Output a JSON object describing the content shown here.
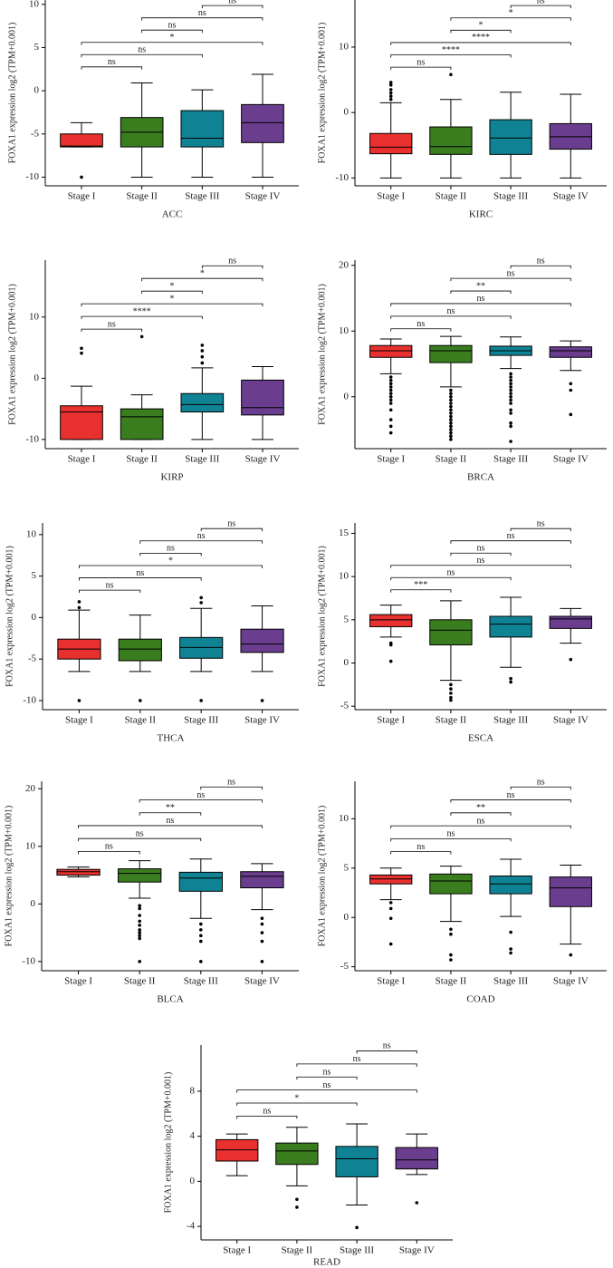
{
  "chart_data": [
    {
      "type": "box",
      "x_label": "ACC",
      "y_label": "FOXA1 expression log2 (TPM+0.001)",
      "categories": [
        "Stage I",
        "Stage II",
        "Stage III",
        "Stage IV"
      ],
      "colors": [
        "#e8312f",
        "#3a7d1f",
        "#0f8394",
        "#6a3d8e"
      ],
      "ylim": [
        -11,
        10.5
      ],
      "yticks": [
        -10,
        -5,
        0,
        5,
        10
      ],
      "boxes": [
        {
          "min": -6.5,
          "q1": -6.5,
          "median": -6.4,
          "q3": -5,
          "max": -3.7,
          "outliers": [
            -10
          ]
        },
        {
          "min": -10,
          "q1": -6.5,
          "median": -4.8,
          "q3": -3.1,
          "max": 0.9,
          "outliers": []
        },
        {
          "min": -10,
          "q1": -6.5,
          "median": -5.5,
          "q3": -2.3,
          "max": 0.1,
          "outliers": []
        },
        {
          "min": -10,
          "q1": -6,
          "median": -3.7,
          "q3": -1.6,
          "max": 1.9,
          "outliers": []
        }
      ],
      "comparisons": [
        {
          "groups": [
            "Stage I",
            "Stage II"
          ],
          "label": "ns"
        },
        {
          "groups": [
            "Stage I",
            "Stage III"
          ],
          "label": "ns"
        },
        {
          "groups": [
            "Stage I",
            "Stage IV"
          ],
          "label": "*"
        },
        {
          "groups": [
            "Stage II",
            "Stage III"
          ],
          "label": "ns"
        },
        {
          "groups": [
            "Stage II",
            "Stage IV"
          ],
          "label": "ns"
        },
        {
          "groups": [
            "Stage III",
            "Stage IV"
          ],
          "label": "ns"
        }
      ]
    },
    {
      "type": "box",
      "x_label": "KIRC",
      "y_label": "FOXA1 expression log2 (TPM+0.001)",
      "categories": [
        "Stage I",
        "Stage II",
        "Stage III",
        "Stage IV"
      ],
      "colors": [
        "#e8312f",
        "#3a7d1f",
        "#0f8394",
        "#6a3d8e"
      ],
      "ylim": [
        -11.2,
        17.2
      ],
      "yticks": [
        -10,
        0,
        10
      ],
      "boxes": [
        {
          "min": -10,
          "q1": -6.3,
          "median": -5.3,
          "q3": -3.2,
          "max": 1.5,
          "outliers": [
            2,
            2.5,
            3,
            3.5,
            4.2,
            4.6
          ]
        },
        {
          "min": -10,
          "q1": -6.4,
          "median": -5.2,
          "q3": -2.2,
          "max": 2,
          "outliers": [
            5.8
          ]
        },
        {
          "min": -10,
          "q1": -6.4,
          "median": -3.9,
          "q3": -1.1,
          "max": 3.1,
          "outliers": []
        },
        {
          "min": -10,
          "q1": -5.6,
          "median": -3.7,
          "q3": -1.7,
          "max": 2.8,
          "outliers": []
        }
      ],
      "comparisons": [
        {
          "groups": [
            "Stage I",
            "Stage II"
          ],
          "label": "ns"
        },
        {
          "groups": [
            "Stage I",
            "Stage III"
          ],
          "label": "****"
        },
        {
          "groups": [
            "Stage I",
            "Stage IV"
          ],
          "label": "****"
        },
        {
          "groups": [
            "Stage II",
            "Stage III"
          ],
          "label": "*"
        },
        {
          "groups": [
            "Stage II",
            "Stage IV"
          ],
          "label": "*"
        },
        {
          "groups": [
            "Stage III",
            "Stage IV"
          ],
          "label": "ns"
        }
      ]
    },
    {
      "type": "box",
      "x_label": "KIRP",
      "y_label": "FOXA1 expression log2 (TPM+0.001)",
      "categories": [
        "Stage I",
        "Stage II",
        "Stage III",
        "Stage IV"
      ],
      "colors": [
        "#e8312f",
        "#3a7d1f",
        "#0f8394",
        "#6a3d8e"
      ],
      "ylim": [
        -11.5,
        19.3
      ],
      "yticks": [
        -10,
        0,
        10
      ],
      "boxes": [
        {
          "min": -10,
          "q1": -10,
          "median": -5.5,
          "q3": -4.5,
          "max": -1.3,
          "outliers": [
            4.1,
            4.9
          ]
        },
        {
          "min": -10,
          "q1": -10,
          "median": -6.3,
          "q3": -5,
          "max": -2.7,
          "outliers": [
            6.8
          ]
        },
        {
          "min": -10,
          "q1": -5.5,
          "median": -4.3,
          "q3": -2.5,
          "max": 1.7,
          "outliers": [
            2.5,
            3.5,
            4.5,
            5.4
          ]
        },
        {
          "min": -10,
          "q1": -6,
          "median": -4.8,
          "q3": -0.3,
          "max": 1.9,
          "outliers": []
        }
      ],
      "comparisons": [
        {
          "groups": [
            "Stage I",
            "Stage II"
          ],
          "label": "ns"
        },
        {
          "groups": [
            "Stage I",
            "Stage III"
          ],
          "label": "****"
        },
        {
          "groups": [
            "Stage I",
            "Stage IV"
          ],
          "label": "*"
        },
        {
          "groups": [
            "Stage II",
            "Stage III"
          ],
          "label": "*"
        },
        {
          "groups": [
            "Stage II",
            "Stage IV"
          ],
          "label": "*"
        },
        {
          "groups": [
            "Stage III",
            "Stage IV"
          ],
          "label": "ns"
        }
      ]
    },
    {
      "type": "box",
      "x_label": "BRCA",
      "y_label": "FOXA1 expression log2 (TPM+0.001)",
      "categories": [
        "Stage I",
        "Stage II",
        "Stage III",
        "Stage IV"
      ],
      "colors": [
        "#e8312f",
        "#3a7d1f",
        "#0f8394",
        "#6a3d8e"
      ],
      "ylim": [
        -7.9,
        20.8
      ],
      "yticks": [
        0,
        10,
        20
      ],
      "boxes": [
        {
          "min": 3.5,
          "q1": 6,
          "median": 7,
          "q3": 7.8,
          "max": 8.8,
          "outliers": [
            -5.5,
            -4.5,
            -3.5,
            -2,
            -1,
            -0.5,
            0,
            0.5,
            1,
            1.5,
            2,
            2.5,
            3
          ]
        },
        {
          "min": 1.5,
          "q1": 5.2,
          "median": 7,
          "q3": 7.8,
          "max": 9.2,
          "outliers": [
            -6.5,
            -6,
            -5.5,
            -5,
            -4.5,
            -4,
            -3.5,
            -3,
            -2.5,
            -2,
            -1.5,
            -1,
            -0.5,
            0,
            0.5,
            1
          ]
        },
        {
          "min": 4.3,
          "q1": 6.3,
          "median": 7,
          "q3": 7.7,
          "max": 9.1,
          "outliers": [
            -6.8,
            -4.5,
            -4,
            -2.5,
            -2,
            -1,
            -0.5,
            0,
            0.5,
            1,
            1.5,
            2,
            2.5,
            3,
            3.5
          ]
        },
        {
          "min": 4,
          "q1": 6,
          "median": 7,
          "q3": 7.6,
          "max": 8.5,
          "outliers": [
            -2.7,
            1,
            2
          ]
        }
      ],
      "comparisons": [
        {
          "groups": [
            "Stage I",
            "Stage II"
          ],
          "label": "ns"
        },
        {
          "groups": [
            "Stage I",
            "Stage III"
          ],
          "label": "ns"
        },
        {
          "groups": [
            "Stage I",
            "Stage IV"
          ],
          "label": "ns"
        },
        {
          "groups": [
            "Stage II",
            "Stage III"
          ],
          "label": "**"
        },
        {
          "groups": [
            "Stage II",
            "Stage IV"
          ],
          "label": "ns"
        },
        {
          "groups": [
            "Stage III",
            "Stage IV"
          ],
          "label": "ns"
        }
      ]
    },
    {
      "type": "box",
      "x_label": "THCA",
      "y_label": "FOXA1 expression log2 (TPM+0.001)",
      "categories": [
        "Stage I",
        "Stage II",
        "Stage III",
        "Stage IV"
      ],
      "colors": [
        "#e8312f",
        "#3a7d1f",
        "#0f8394",
        "#6a3d8e"
      ],
      "ylim": [
        -11.1,
        11.4
      ],
      "yticks": [
        -10,
        -5,
        0,
        5,
        10
      ],
      "boxes": [
        {
          "min": -6.5,
          "q1": -5,
          "median": -3.8,
          "q3": -2.6,
          "max": 0.9,
          "outliers": [
            -10,
            1.2,
            1.9
          ]
        },
        {
          "min": -6.5,
          "q1": -5.2,
          "median": -3.8,
          "q3": -2.6,
          "max": 0.3,
          "outliers": [
            -10
          ]
        },
        {
          "min": -6.5,
          "q1": -4.9,
          "median": -3.6,
          "q3": -2.4,
          "max": 1.1,
          "outliers": [
            -10,
            1.8,
            2.4
          ]
        },
        {
          "min": -6.5,
          "q1": -4.2,
          "median": -3.2,
          "q3": -1.4,
          "max": 1.4,
          "outliers": [
            -10
          ]
        }
      ],
      "comparisons": [
        {
          "groups": [
            "Stage I",
            "Stage II"
          ],
          "label": "ns"
        },
        {
          "groups": [
            "Stage I",
            "Stage III"
          ],
          "label": "ns"
        },
        {
          "groups": [
            "Stage I",
            "Stage IV"
          ],
          "label": "*"
        },
        {
          "groups": [
            "Stage II",
            "Stage III"
          ],
          "label": "ns"
        },
        {
          "groups": [
            "Stage II",
            "Stage IV"
          ],
          "label": "ns"
        },
        {
          "groups": [
            "Stage III",
            "Stage IV"
          ],
          "label": "ns"
        }
      ]
    },
    {
      "type": "box",
      "x_label": "ESCA",
      "y_label": "FOXA1 expression log2 (TPM+0.001)",
      "categories": [
        "Stage I",
        "Stage II",
        "Stage III",
        "Stage IV"
      ],
      "colors": [
        "#e8312f",
        "#3a7d1f",
        "#0f8394",
        "#6a3d8e"
      ],
      "ylim": [
        -5.4,
        16.2
      ],
      "yticks": [
        -5,
        0,
        5,
        10,
        15
      ],
      "boxes": [
        {
          "min": 3,
          "q1": 4.2,
          "median": 5,
          "q3": 5.6,
          "max": 6.7,
          "outliers": [
            0.2,
            2.1,
            2.3
          ]
        },
        {
          "min": -2,
          "q1": 2.1,
          "median": 3.8,
          "q3": 5,
          "max": 7.2,
          "outliers": [
            -2.5,
            -3,
            -3.5,
            -4,
            -4.3
          ]
        },
        {
          "min": -0.5,
          "q1": 3,
          "median": 4.5,
          "q3": 5.4,
          "max": 7.6,
          "outliers": [
            -1.8,
            -2.2
          ]
        },
        {
          "min": 2.3,
          "q1": 4,
          "median": 5.1,
          "q3": 5.4,
          "max": 6.3,
          "outliers": [
            0.4
          ]
        }
      ],
      "comparisons": [
        {
          "groups": [
            "Stage I",
            "Stage II"
          ],
          "label": "***"
        },
        {
          "groups": [
            "Stage I",
            "Stage III"
          ],
          "label": "ns"
        },
        {
          "groups": [
            "Stage I",
            "Stage IV"
          ],
          "label": "ns"
        },
        {
          "groups": [
            "Stage II",
            "Stage III"
          ],
          "label": "ns"
        },
        {
          "groups": [
            "Stage II",
            "Stage IV"
          ],
          "label": "ns"
        },
        {
          "groups": [
            "Stage III",
            "Stage IV"
          ],
          "label": "ns"
        }
      ]
    },
    {
      "type": "box",
      "x_label": "BLCA",
      "y_label": "FOXA1 expression log2 (TPM+0.001)",
      "categories": [
        "Stage I",
        "Stage II",
        "Stage III",
        "Stage IV"
      ],
      "colors": [
        "#e8312f",
        "#3a7d1f",
        "#0f8394",
        "#6a3d8e"
      ],
      "ylim": [
        -11.6,
        21.3
      ],
      "yticks": [
        -10,
        0,
        10,
        20
      ],
      "boxes": [
        {
          "min": 4.7,
          "q1": 5,
          "median": 5.6,
          "q3": 6,
          "max": 6.4,
          "outliers": []
        },
        {
          "min": 1,
          "q1": 3.8,
          "median": 5.3,
          "q3": 6.1,
          "max": 7.5,
          "outliers": [
            -0.3,
            -0.8,
            -2,
            -3,
            -3.7,
            -4.5,
            -5,
            -5.5,
            -6,
            -10
          ]
        },
        {
          "min": -2.5,
          "q1": 2.2,
          "median": 4.5,
          "q3": 5.5,
          "max": 7.8,
          "outliers": [
            -3.5,
            -4.5,
            -5.5,
            -6.5,
            -10
          ]
        },
        {
          "min": -1,
          "q1": 2.8,
          "median": 4.8,
          "q3": 5.6,
          "max": 7,
          "outliers": [
            -2.5,
            -3.5,
            -5,
            -6.5,
            -10
          ]
        }
      ],
      "comparisons": [
        {
          "groups": [
            "Stage I",
            "Stage II"
          ],
          "label": "ns"
        },
        {
          "groups": [
            "Stage I",
            "Stage III"
          ],
          "label": "ns"
        },
        {
          "groups": [
            "Stage I",
            "Stage IV"
          ],
          "label": "ns"
        },
        {
          "groups": [
            "Stage II",
            "Stage III"
          ],
          "label": "**"
        },
        {
          "groups": [
            "Stage II",
            "Stage IV"
          ],
          "label": "ns"
        },
        {
          "groups": [
            "Stage III",
            "Stage IV"
          ],
          "label": "ns"
        }
      ]
    },
    {
      "type": "box",
      "x_label": "COAD",
      "y_label": "FOXA1 expression log2 (TPM+0.001)",
      "categories": [
        "Stage I",
        "Stage II",
        "Stage III",
        "Stage IV"
      ],
      "colors": [
        "#e8312f",
        "#3a7d1f",
        "#0f8394",
        "#6a3d8e"
      ],
      "ylim": [
        -5.4,
        13.8
      ],
      "yticks": [
        -5,
        0,
        5,
        10
      ],
      "boxes": [
        {
          "min": 1.8,
          "q1": 3.4,
          "median": 3.9,
          "q3": 4.3,
          "max": 5,
          "outliers": [
            -2.7,
            -0.1,
            0.9,
            1.5
          ]
        },
        {
          "min": -0.4,
          "q1": 2.4,
          "median": 3.7,
          "q3": 4.4,
          "max": 5.2,
          "outliers": [
            -1.2,
            -1.7,
            -3.8,
            -4.3
          ]
        },
        {
          "min": 0.1,
          "q1": 2.4,
          "median": 3.4,
          "q3": 4.2,
          "max": 5.9,
          "outliers": [
            -1.5,
            -3.2,
            -3.6
          ]
        },
        {
          "min": -2.7,
          "q1": 1.1,
          "median": 3,
          "q3": 4.1,
          "max": 5.3,
          "outliers": [
            -3.8
          ]
        }
      ],
      "comparisons": [
        {
          "groups": [
            "Stage I",
            "Stage II"
          ],
          "label": "ns"
        },
        {
          "groups": [
            "Stage I",
            "Stage III"
          ],
          "label": "ns"
        },
        {
          "groups": [
            "Stage I",
            "Stage IV"
          ],
          "label": "ns"
        },
        {
          "groups": [
            "Stage II",
            "Stage III"
          ],
          "label": "**"
        },
        {
          "groups": [
            "Stage II",
            "Stage IV"
          ],
          "label": "ns"
        },
        {
          "groups": [
            "Stage III",
            "Stage IV"
          ],
          "label": "ns"
        }
      ]
    },
    {
      "type": "box",
      "x_label": "READ",
      "y_label": "FOXA1 expression log2 (TPM+0.001)",
      "categories": [
        "Stage I",
        "Stage II",
        "Stage III",
        "Stage IV"
      ],
      "colors": [
        "#e8312f",
        "#3a7d1f",
        "#0f8394",
        "#6a3d8e"
      ],
      "ylim": [
        -5.2,
        12.1
      ],
      "yticks": [
        -4,
        0,
        4,
        8
      ],
      "boxes": [
        {
          "min": 0.5,
          "q1": 1.8,
          "median": 2.8,
          "q3": 3.7,
          "max": 4.2,
          "outliers": []
        },
        {
          "min": -0.4,
          "q1": 1.5,
          "median": 2.7,
          "q3": 3.4,
          "max": 4.8,
          "outliers": [
            -1.6,
            -2.3
          ]
        },
        {
          "min": -2.1,
          "q1": 0.4,
          "median": 2,
          "q3": 3.1,
          "max": 5.1,
          "outliers": [
            -4.1
          ]
        },
        {
          "min": 0.6,
          "q1": 1.1,
          "median": 1.9,
          "q3": 3,
          "max": 4.2,
          "outliers": [
            -1.9
          ]
        }
      ],
      "comparisons": [
        {
          "groups": [
            "Stage I",
            "Stage II"
          ],
          "label": "ns"
        },
        {
          "groups": [
            "Stage I",
            "Stage III"
          ],
          "label": "*"
        },
        {
          "groups": [
            "Stage I",
            "Stage IV"
          ],
          "label": "ns"
        },
        {
          "groups": [
            "Stage II",
            "Stage III"
          ],
          "label": "ns"
        },
        {
          "groups": [
            "Stage II",
            "Stage IV"
          ],
          "label": "ns"
        },
        {
          "groups": [
            "Stage III",
            "Stage IV"
          ],
          "label": "ns"
        }
      ]
    }
  ]
}
